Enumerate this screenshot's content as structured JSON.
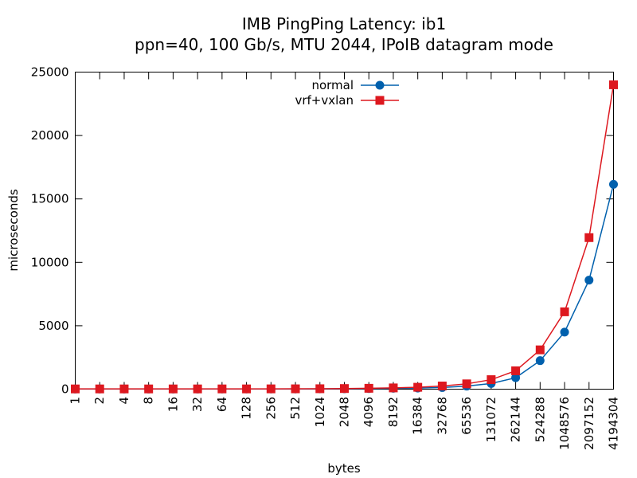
{
  "chart_data": {
    "type": "line",
    "title": "IMB PingPing Latency: ib1",
    "subtitle": "ppn=40, 100 Gb/s, MTU 2044, IPoIB datagram mode",
    "xlabel": "bytes",
    "ylabel": "microseconds",
    "ylim": [
      0,
      25000
    ],
    "yticks": [
      0,
      5000,
      10000,
      15000,
      20000,
      25000
    ],
    "grid": false,
    "legend_position": "top-center",
    "categories": [
      "1",
      "2",
      "4",
      "8",
      "16",
      "32",
      "64",
      "128",
      "256",
      "512",
      "1024",
      "2048",
      "4096",
      "8192",
      "16384",
      "32768",
      "65536",
      "131072",
      "262144",
      "524288",
      "1048576",
      "2097152",
      "4194304"
    ],
    "series": [
      {
        "name": "normal",
        "color": "#0060ad",
        "marker": "circle",
        "values": [
          12,
          12,
          12,
          12,
          12,
          12,
          13,
          14,
          16,
          18,
          22,
          30,
          45,
          70,
          90,
          130,
          240,
          450,
          900,
          2250,
          4500,
          8600,
          16150
        ]
      },
      {
        "name": "vrf+vxlan",
        "color": "#dd181f",
        "marker": "square",
        "values": [
          20,
          20,
          20,
          20,
          20,
          20,
          21,
          22,
          25,
          28,
          35,
          50,
          70,
          100,
          150,
          250,
          420,
          750,
          1450,
          3100,
          6100,
          11950,
          24000
        ]
      }
    ]
  }
}
